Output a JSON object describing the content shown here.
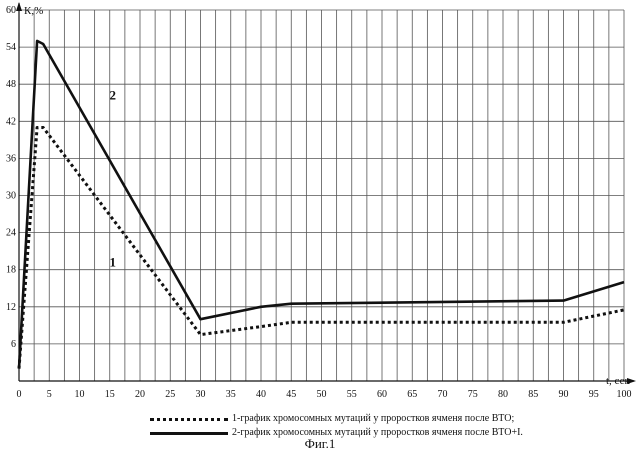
{
  "chart_data": {
    "type": "line",
    "title": "",
    "xlabel": "t, сек",
    "ylabel": "К,%",
    "xlim": [
      0,
      100
    ],
    "ylim": [
      0,
      60
    ],
    "xticks": [
      0,
      5,
      10,
      15,
      20,
      25,
      30,
      35,
      40,
      45,
      50,
      55,
      60,
      65,
      70,
      75,
      80,
      85,
      90,
      95,
      100
    ],
    "yticks": [
      6,
      12,
      18,
      24,
      30,
      36,
      42,
      48,
      54,
      60
    ],
    "x_minor_step": 2.5,
    "grid": true,
    "series": [
      {
        "marker": "1",
        "style": "dotted",
        "color": "#111111",
        "label": "1-график хромосомных мутаций у проростков ячменя после ВТО;",
        "x": [
          0,
          3,
          4,
          30,
          40,
          45,
          90,
          100
        ],
        "y": [
          2,
          41,
          41,
          7.5,
          8.8,
          9.5,
          9.5,
          11.5
        ]
      },
      {
        "marker": "2",
        "style": "solid",
        "color": "#111111",
        "label": "2-график хромосомных мутаций у проростков ячменя после ВТО+I.",
        "x": [
          0,
          3,
          4,
          30,
          40,
          45,
          90,
          100
        ],
        "y": [
          2,
          55,
          54.5,
          10,
          12,
          12.5,
          13,
          16
        ]
      }
    ],
    "annotations": [
      {
        "text": "1",
        "x": 15.5,
        "y": 18.5
      },
      {
        "text": "2",
        "x": 15.5,
        "y": 45.5
      }
    ]
  },
  "caption": "Фиг.1"
}
